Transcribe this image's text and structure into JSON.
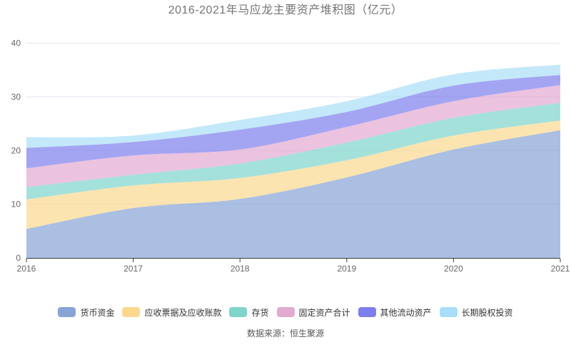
{
  "chart_data": {
    "type": "area",
    "stacked": true,
    "smooth": true,
    "title": "2016-2021年马应龙主要资产堆积图（亿元）",
    "categories": [
      "2016",
      "2017",
      "2018",
      "2019",
      "2020",
      "2021"
    ],
    "series": [
      {
        "name": "货币资金",
        "color": "#87a4d5",
        "values": [
          5.4,
          9.3,
          11.0,
          15.0,
          20.2,
          23.8
        ]
      },
      {
        "name": "应收票据及应收账款",
        "color": "#fbd88e",
        "values": [
          5.5,
          4.2,
          3.9,
          3.2,
          2.6,
          1.8
        ]
      },
      {
        "name": "存货",
        "color": "#7fd4cc",
        "values": [
          2.3,
          2.0,
          2.7,
          3.3,
          3.3,
          3.3
        ]
      },
      {
        "name": "固定资产合计",
        "color": "#e2a9d2",
        "values": [
          3.5,
          3.6,
          2.6,
          2.9,
          3.1,
          3.3
        ]
      },
      {
        "name": "其他流动资产",
        "color": "#7d7fec",
        "values": [
          3.8,
          2.5,
          3.7,
          2.8,
          2.9,
          1.9
        ]
      },
      {
        "name": "长期股权投资",
        "color": "#a9def8",
        "values": [
          2.0,
          1.2,
          1.8,
          2.0,
          2.1,
          1.9
        ]
      }
    ],
    "ylim": [
      0,
      40
    ],
    "yticks": [
      0,
      10,
      20,
      30,
      40
    ],
    "xlabel": "",
    "ylabel": "",
    "grid": true,
    "legend_position": "bottom",
    "area_opacity": 0.7
  },
  "source_note": "数据来源：恒生聚源",
  "colors": {
    "title_text": "#757575",
    "axis_label": "#666666",
    "legend_label": "#333333",
    "gridline": "#e2e5f0",
    "axis_line": "#3c3c3c",
    "source_text": "#595959",
    "background": "#ffffff"
  }
}
